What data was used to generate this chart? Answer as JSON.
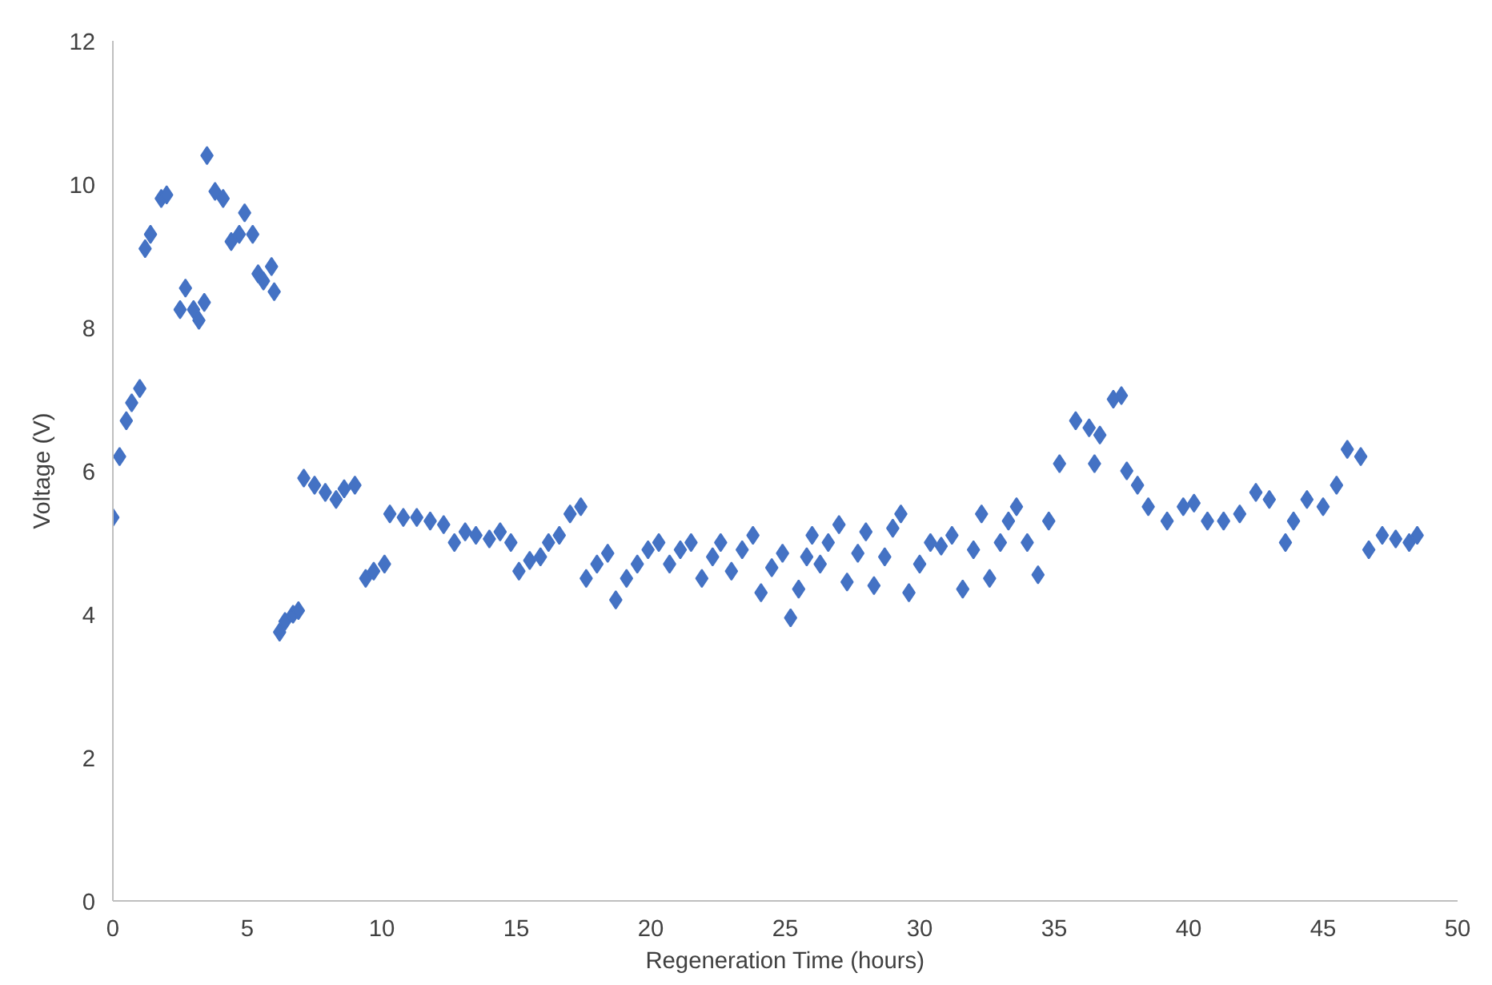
{
  "chart_data": {
    "type": "scatter",
    "xlabel": "Regeneration Time (hours)",
    "ylabel": "Voltage (V)",
    "xlim": [
      0,
      50
    ],
    "ylim": [
      0,
      12
    ],
    "xticks": [
      0,
      5,
      10,
      15,
      20,
      25,
      30,
      35,
      40,
      45,
      50
    ],
    "yticks": [
      0,
      2,
      4,
      6,
      8,
      10,
      12
    ],
    "grid": false,
    "marker": "diamond",
    "series": [
      {
        "color": "#4472c4",
        "x": [
          0,
          0.25,
          0.5,
          0.7,
          1.0,
          1.2,
          1.4,
          1.8,
          2.0,
          2.5,
          2.7,
          3.0,
          3.2,
          3.4,
          3.5,
          3.8,
          4.1,
          4.4,
          4.7,
          4.9,
          5.2,
          5.4,
          5.6,
          5.9,
          6.0,
          6.2,
          6.4,
          6.7,
          6.9,
          7.1,
          7.5,
          7.9,
          8.3,
          8.6,
          9.0,
          9.4,
          9.7,
          10.1,
          10.3,
          10.8,
          11.3,
          11.8,
          12.3,
          12.7,
          13.1,
          13.5,
          14.0,
          14.4,
          14.8,
          15.1,
          15.5,
          15.9,
          16.2,
          16.6,
          17.0,
          17.4,
          17.6,
          18.0,
          18.4,
          18.7,
          19.1,
          19.5,
          19.9,
          20.3,
          20.7,
          21.1,
          21.5,
          21.9,
          22.3,
          22.6,
          23.0,
          23.4,
          23.8,
          24.1,
          24.5,
          24.9,
          25.2,
          25.5,
          25.8,
          26.0,
          26.3,
          26.6,
          27.0,
          27.3,
          27.7,
          28.0,
          28.3,
          28.7,
          29.0,
          29.3,
          29.6,
          30.0,
          30.4,
          30.8,
          31.2,
          31.6,
          32.0,
          32.3,
          32.6,
          33.0,
          33.3,
          33.6,
          34.0,
          34.4,
          34.8,
          35.2,
          35.8,
          36.3,
          36.7,
          36.5,
          37.2,
          37.5,
          37.7,
          38.1,
          38.5,
          39.2,
          39.8,
          40.2,
          40.7,
          41.3,
          41.9,
          42.5,
          43.0,
          43.6,
          43.9,
          44.4,
          45.0,
          45.5,
          45.9,
          46.4,
          46.7,
          47.2,
          47.7,
          48.2,
          48.5
        ],
        "values": [
          5.35,
          6.2,
          6.7,
          6.95,
          7.15,
          9.1,
          9.3,
          9.8,
          9.85,
          8.25,
          8.55,
          8.25,
          8.1,
          8.35,
          10.4,
          9.9,
          9.8,
          9.2,
          9.3,
          9.6,
          9.3,
          8.75,
          8.65,
          8.85,
          8.5,
          3.75,
          3.9,
          4.0,
          4.05,
          5.9,
          5.8,
          5.7,
          5.6,
          5.75,
          5.8,
          4.5,
          4.6,
          4.7,
          5.4,
          5.35,
          5.35,
          5.3,
          5.25,
          5.0,
          5.15,
          5.1,
          5.05,
          5.15,
          5.0,
          4.6,
          4.75,
          4.8,
          5.0,
          5.1,
          5.4,
          5.5,
          4.5,
          4.7,
          4.85,
          4.2,
          4.5,
          4.7,
          4.9,
          5.0,
          4.7,
          4.9,
          5.0,
          4.5,
          4.8,
          5.0,
          4.6,
          4.9,
          5.1,
          4.3,
          4.65,
          4.85,
          3.95,
          4.35,
          4.8,
          5.1,
          4.7,
          5.0,
          5.25,
          4.45,
          4.85,
          5.15,
          4.4,
          4.8,
          5.2,
          5.4,
          4.3,
          4.7,
          5.0,
          4.95,
          5.1,
          4.35,
          4.9,
          5.4,
          4.5,
          5.0,
          5.3,
          5.5,
          5.0,
          4.55,
          5.3,
          6.1,
          6.7,
          6.6,
          6.5,
          6.1,
          7.0,
          7.05,
          6.0,
          5.8,
          5.5,
          5.3,
          5.5,
          5.55,
          5.3,
          5.3,
          5.4,
          5.7,
          5.6,
          5.0,
          5.3,
          5.6,
          5.5,
          5.8,
          6.3,
          6.2,
          4.9,
          5.1,
          5.05,
          5.0,
          5.1
        ]
      }
    ]
  }
}
